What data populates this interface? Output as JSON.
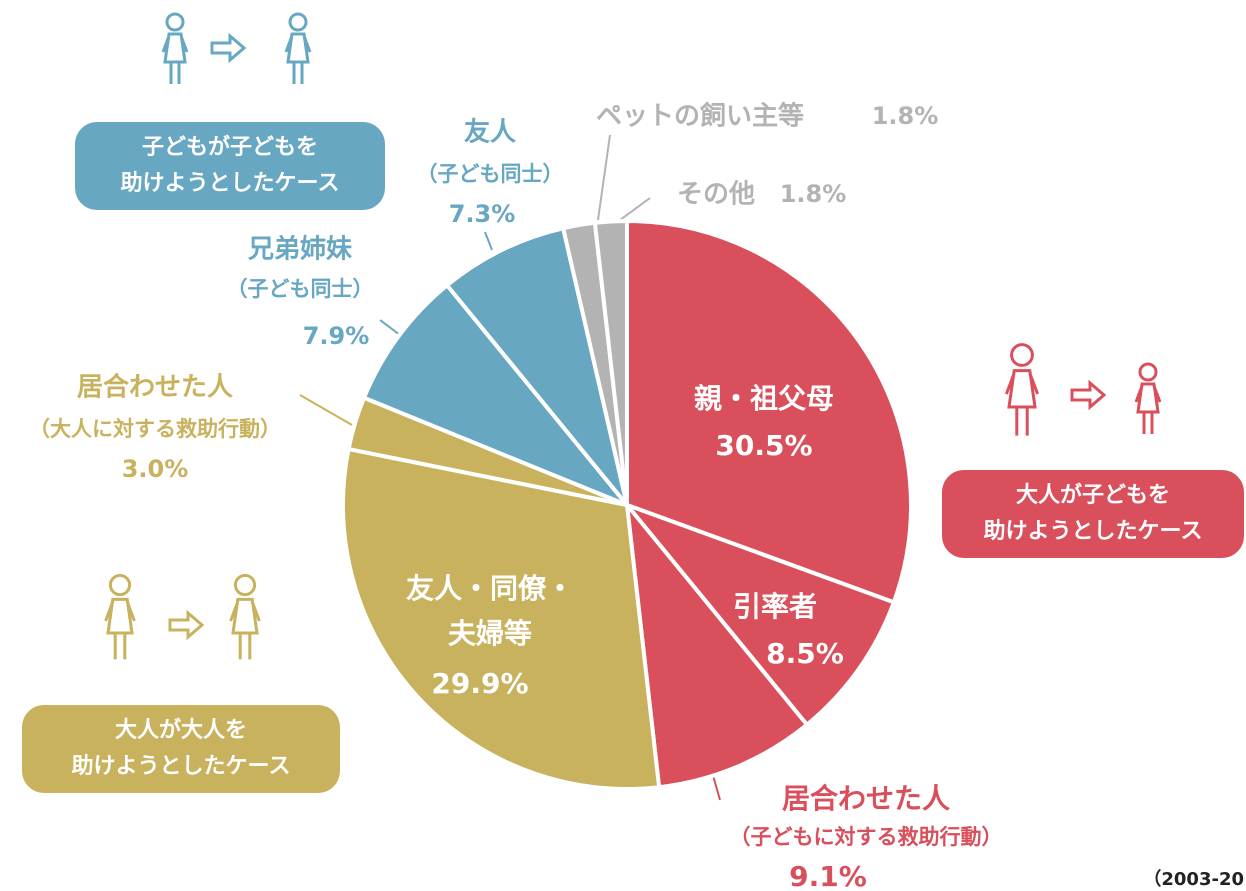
{
  "chart_data": {
    "type": "pie",
    "categories": [
      [
        "親・祖父母"
      ],
      [
        "引率者"
      ],
      [
        "居合わせた人",
        "（子どもに対する救助行動）"
      ],
      [
        "友人・同僚・",
        "夫婦等"
      ],
      [
        "居合わせた人",
        "（大人に対する救助行動）"
      ],
      [
        "兄弟姉妹",
        "（子ども同士）"
      ],
      [
        "友人",
        "（子ども同士）"
      ],
      [
        "ペットの飼い主等"
      ],
      [
        "その他"
      ]
    ],
    "values": [
      30.5,
      8.5,
      9.1,
      29.9,
      3.0,
      7.9,
      7.3,
      1.8,
      1.8
    ],
    "value_labels": [
      "30.5%",
      "8.5%",
      "9.1%",
      "29.9%",
      "3.0%",
      "7.9%",
      "7.3%",
      "1.8%",
      "1.8%"
    ],
    "colors": [
      "#d9505c",
      "#d9505c",
      "#d9505c",
      "#c9b25e",
      "#c9b25e",
      "#68a7c1",
      "#68a7c1",
      "#b3b3b3",
      "#b3b3b3"
    ],
    "groups": [
      {
        "lines": [
          "子どもが子どもを",
          "助けようとしたケース"
        ],
        "color": "#68a7c1"
      },
      {
        "lines": [
          "大人が子どもを",
          "助けようとしたケース"
        ],
        "color": "#d9505c"
      },
      {
        "lines": [
          "大人が大人を",
          "助けようとしたケース"
        ],
        "color": "#c9b25e"
      }
    ],
    "footnote": "（2003-20"
  }
}
